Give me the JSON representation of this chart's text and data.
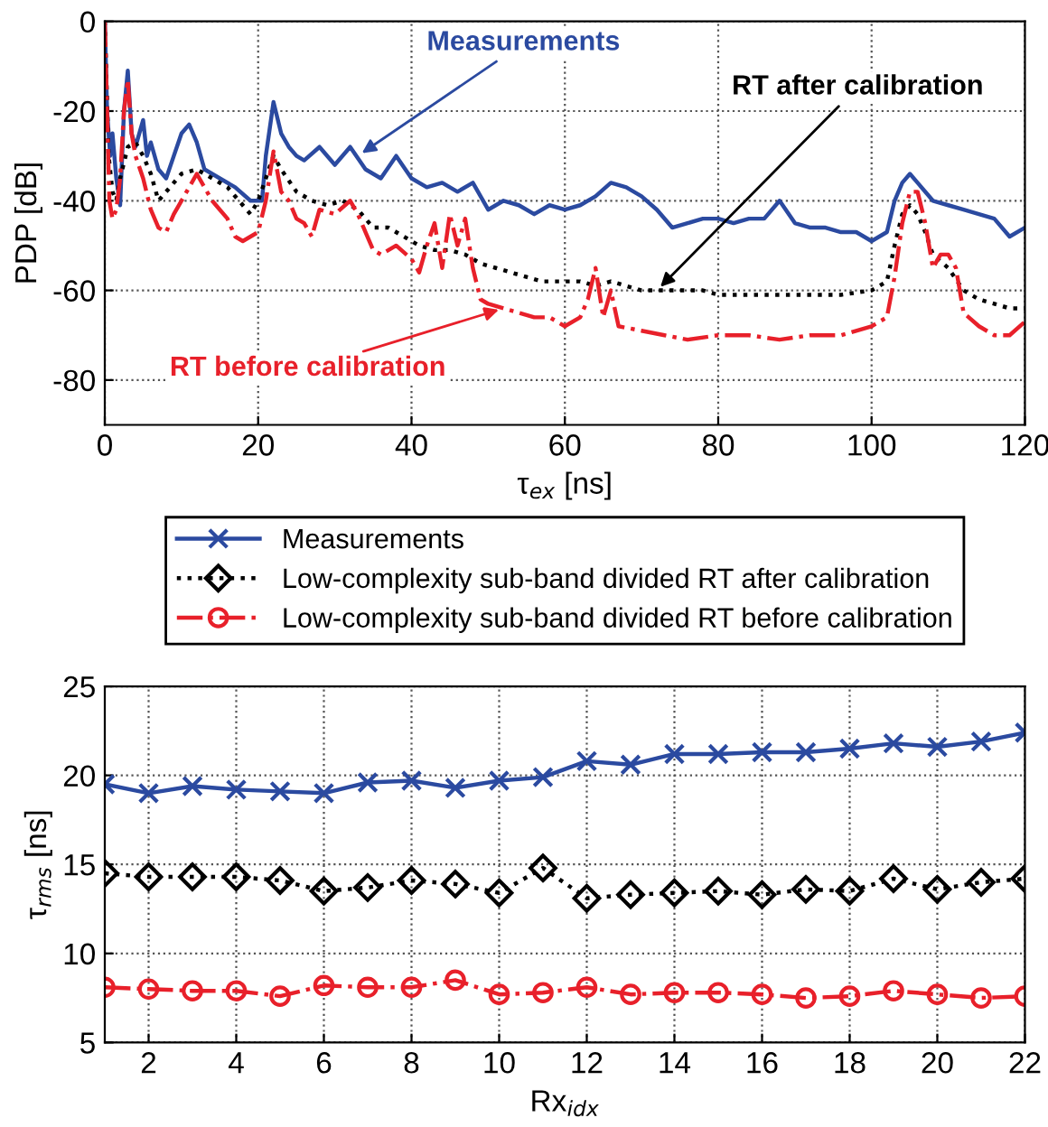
{
  "chart_data": [
    {
      "type": "line",
      "xlabel": "τ$_{ex}$ [ns]",
      "ylabel": "PDP [dB]",
      "xlim": [
        0,
        120
      ],
      "ylim": [
        -90,
        0
      ],
      "xticks": [
        0,
        20,
        40,
        60,
        80,
        100,
        120
      ],
      "yticks": [
        -80,
        -60,
        -40,
        -20,
        0
      ],
      "grid": true,
      "legend": false,
      "marker": "none",
      "series": [
        {
          "color": "#2b4aa0",
          "line_style": "solid",
          "x": [
            0,
            0.3,
            0.7,
            1,
            1.5,
            2,
            2.5,
            3,
            3.5,
            4,
            5,
            5.5,
            6,
            7,
            8,
            9,
            10,
            11,
            12,
            13,
            15,
            17,
            19,
            20.5,
            21,
            22,
            23,
            24,
            25,
            26,
            28,
            30,
            32,
            34,
            36,
            38,
            40,
            42,
            44,
            46,
            48,
            50,
            52,
            54,
            56,
            58,
            60,
            62,
            64,
            66,
            68,
            70,
            72,
            74,
            76,
            78,
            80,
            82,
            84,
            86,
            88,
            90,
            92,
            94,
            96,
            98,
            100,
            102,
            103,
            104,
            105,
            106,
            108,
            110,
            112,
            114,
            116,
            118,
            120
          ],
          "values": [
            0,
            -20,
            -30,
            -25,
            -35,
            -41,
            -20,
            -11,
            -25,
            -28,
            -22,
            -30,
            -27,
            -33,
            -35,
            -30,
            -25,
            -23,
            -27,
            -33,
            -35,
            -37,
            -40,
            -40,
            -30,
            -18,
            -25,
            -28,
            -30,
            -31,
            -28,
            -32,
            -28,
            -33,
            -35,
            -30,
            -35,
            -37,
            -36,
            -38,
            -36,
            -42,
            -40,
            -41,
            -43,
            -41,
            -42,
            -41,
            -39,
            -36,
            -37,
            -39,
            -42,
            -46,
            -45,
            -44,
            -44,
            -45,
            -44,
            -44,
            -40,
            -45,
            -46,
            -46,
            -47,
            -47,
            -49,
            -47,
            -40,
            -36,
            -34,
            -36,
            -40,
            -41,
            -42,
            -43,
            -44,
            -48,
            -46
          ]
        },
        {
          "color": "#000000",
          "line_style": "dotted",
          "x": [
            0,
            0.5,
            1,
            1.5,
            2,
            3,
            4,
            5,
            6,
            7,
            8,
            9,
            10,
            12,
            14,
            16,
            18,
            19,
            20,
            21,
            22,
            23,
            25,
            27,
            29,
            31,
            33,
            35,
            37,
            39,
            41,
            43,
            45,
            47,
            49,
            51,
            53,
            55,
            57,
            60,
            62,
            64,
            66,
            68,
            70,
            72,
            75,
            78,
            80,
            84,
            88,
            92,
            96,
            100,
            102,
            103,
            104,
            105,
            106,
            107,
            108,
            110,
            112,
            114,
            116,
            118,
            120
          ],
          "values": [
            0,
            -30,
            -38,
            -40,
            -35,
            -28,
            -27,
            -30,
            -34,
            -40,
            -38,
            -36,
            -34,
            -33,
            -35,
            -37,
            -41,
            -43,
            -40,
            -35,
            -30,
            -33,
            -38,
            -40,
            -41,
            -40,
            -42,
            -46,
            -46,
            -48,
            -50,
            -51,
            -51,
            -52,
            -54,
            -55,
            -56,
            -57,
            -58,
            -58,
            -58,
            -59,
            -58,
            -59,
            -60,
            -60,
            -60,
            -60,
            -61,
            -61,
            -61,
            -61,
            -61,
            -60,
            -58,
            -50,
            -43,
            -41,
            -43,
            -47,
            -52,
            -55,
            -60,
            -62,
            -63,
            -64,
            -64
          ]
        },
        {
          "color": "#e8202a",
          "line_style": "dashdot",
          "x": [
            0,
            0.3,
            0.6,
            1,
            1.5,
            2,
            2.5,
            3,
            3.5,
            4,
            5,
            6,
            7,
            8,
            9,
            10,
            11,
            12,
            13,
            14,
            15,
            16,
            17,
            18,
            19,
            20,
            21,
            22,
            23,
            24,
            25,
            26,
            27,
            28,
            30,
            32,
            33,
            34,
            35,
            36,
            38,
            40,
            41,
            42,
            43,
            44,
            45,
            46,
            47,
            48,
            49,
            50,
            52,
            54,
            56,
            58,
            60,
            62,
            63,
            64,
            65,
            66,
            67,
            70,
            73,
            76,
            80,
            84,
            88,
            92,
            96,
            100,
            102,
            103,
            104,
            105,
            106,
            107,
            108,
            109,
            110,
            111,
            112,
            114,
            116,
            118,
            120
          ],
          "values": [
            0,
            -20,
            -40,
            -44,
            -42,
            -35,
            -20,
            -13,
            -25,
            -30,
            -35,
            -42,
            -46,
            -47,
            -43,
            -40,
            -37,
            -34,
            -37,
            -40,
            -42,
            -44,
            -48,
            -49,
            -48,
            -47,
            -40,
            -29,
            -38,
            -40,
            -44,
            -45,
            -48,
            -42,
            -43,
            -40,
            -43,
            -47,
            -51,
            -52,
            -50,
            -53,
            -56,
            -50,
            -45,
            -55,
            -43,
            -50,
            -44,
            -55,
            -62,
            -63,
            -64,
            -65,
            -66,
            -66,
            -68,
            -66,
            -62,
            -55,
            -66,
            -60,
            -68,
            -69,
            -70,
            -71,
            -70,
            -70,
            -71,
            -70,
            -70,
            -68,
            -66,
            -57,
            -45,
            -38,
            -38,
            -45,
            -55,
            -52,
            -52,
            -55,
            -65,
            -68,
            -70,
            -70,
            -67
          ]
        }
      ],
      "annotations": [
        {
          "text": "Measurements",
          "x": 33,
          "y": -30
        },
        {
          "text": "RT after calibration",
          "x": 72,
          "y": -60
        },
        {
          "text": "RT before calibration",
          "x": 52,
          "y": -64
        }
      ]
    },
    {
      "type": "line",
      "xlabel": "Rx$_{idx}$",
      "ylabel": "τ$_{rms}$ [ns]",
      "xlim": [
        1,
        22
      ],
      "ylim": [
        5,
        25
      ],
      "xticks": [
        2,
        4,
        6,
        8,
        10,
        12,
        14,
        16,
        18,
        20,
        22
      ],
      "yticks": [
        5,
        10,
        15,
        20,
        25
      ],
      "grid": true,
      "legend": "top",
      "x": [
        1,
        2,
        3,
        4,
        5,
        6,
        7,
        8,
        9,
        10,
        11,
        12,
        13,
        14,
        15,
        16,
        17,
        18,
        19,
        20,
        21,
        22
      ],
      "series": [
        {
          "name": "Measurements",
          "color": "#2b4aa0",
          "line_style": "solid",
          "marker": "cross",
          "values": [
            19.5,
            19.0,
            19.4,
            19.2,
            19.1,
            19.0,
            19.6,
            19.7,
            19.3,
            19.7,
            19.9,
            20.8,
            20.6,
            21.2,
            21.2,
            21.3,
            21.3,
            21.5,
            21.8,
            21.6,
            21.9,
            22.4
          ]
        },
        {
          "name": "Low-complexity sub-band divided RT after calibration",
          "color": "#000000",
          "line_style": "dotted",
          "marker": "diamond",
          "values": [
            14.5,
            14.3,
            14.3,
            14.3,
            14.1,
            13.5,
            13.7,
            14.1,
            13.9,
            13.4,
            14.8,
            13.1,
            13.3,
            13.4,
            13.5,
            13.3,
            13.6,
            13.5,
            14.2,
            13.6,
            14.0,
            14.2
          ]
        },
        {
          "name": "Low-complexity sub-band divided RT before calibration",
          "color": "#e8202a",
          "line_style": "dashdot",
          "marker": "circle",
          "values": [
            8.1,
            8.0,
            7.9,
            7.9,
            7.6,
            8.2,
            8.1,
            8.1,
            8.5,
            7.7,
            7.8,
            8.1,
            7.7,
            7.8,
            7.8,
            7.7,
            7.5,
            7.6,
            7.9,
            7.7,
            7.5,
            7.6
          ]
        }
      ]
    }
  ]
}
